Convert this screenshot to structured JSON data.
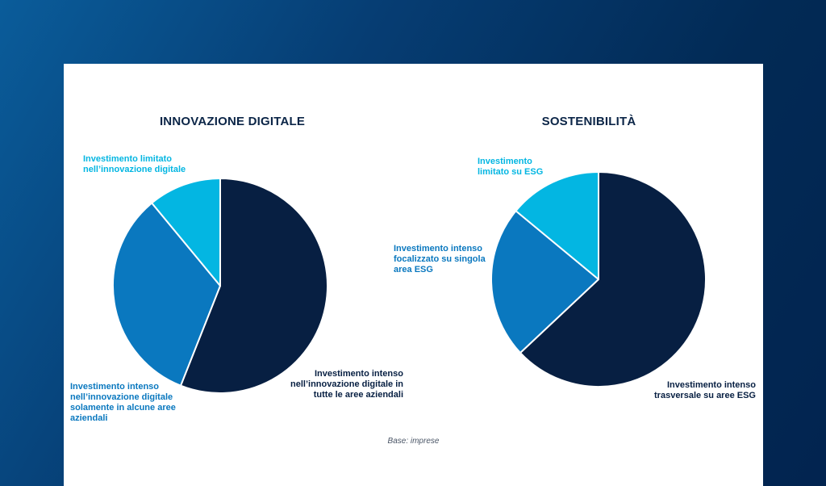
{
  "colors": {
    "dark_navy": "#071f42",
    "mid_blue": "#0a78bf",
    "light_cyan": "#03b6e2",
    "title": "#0b2547"
  },
  "footer": {
    "base": "Base: imprese"
  },
  "chart_data": [
    {
      "type": "pie",
      "title": "INNOVAZIONE DIGITALE",
      "slices": [
        {
          "label": "Investimento intenso\nnell’innovazione digitale in\ntutte le aree aziendali",
          "value": 56,
          "color": "#071f42"
        },
        {
          "label": "Investimento intenso\nnell’innovazione digitale\nsolamente in alcune aree\naziendali",
          "value": 33,
          "color": "#0a78bf"
        },
        {
          "label": "Investimento limitato\nnell’innovazione digitale",
          "value": 11,
          "color": "#03b6e2"
        }
      ]
    },
    {
      "type": "pie",
      "title": "SOSTENIBILITÀ",
      "slices": [
        {
          "label": "Investimento intenso\ntrasversale su aree ESG",
          "value": 63,
          "color": "#071f42"
        },
        {
          "label": "Investimento intenso\nfocalizzato su singola\narea ESG",
          "value": 23,
          "color": "#0a78bf"
        },
        {
          "label": "Investimento\nlimitato su ESG",
          "value": 14,
          "color": "#03b6e2"
        }
      ]
    }
  ]
}
